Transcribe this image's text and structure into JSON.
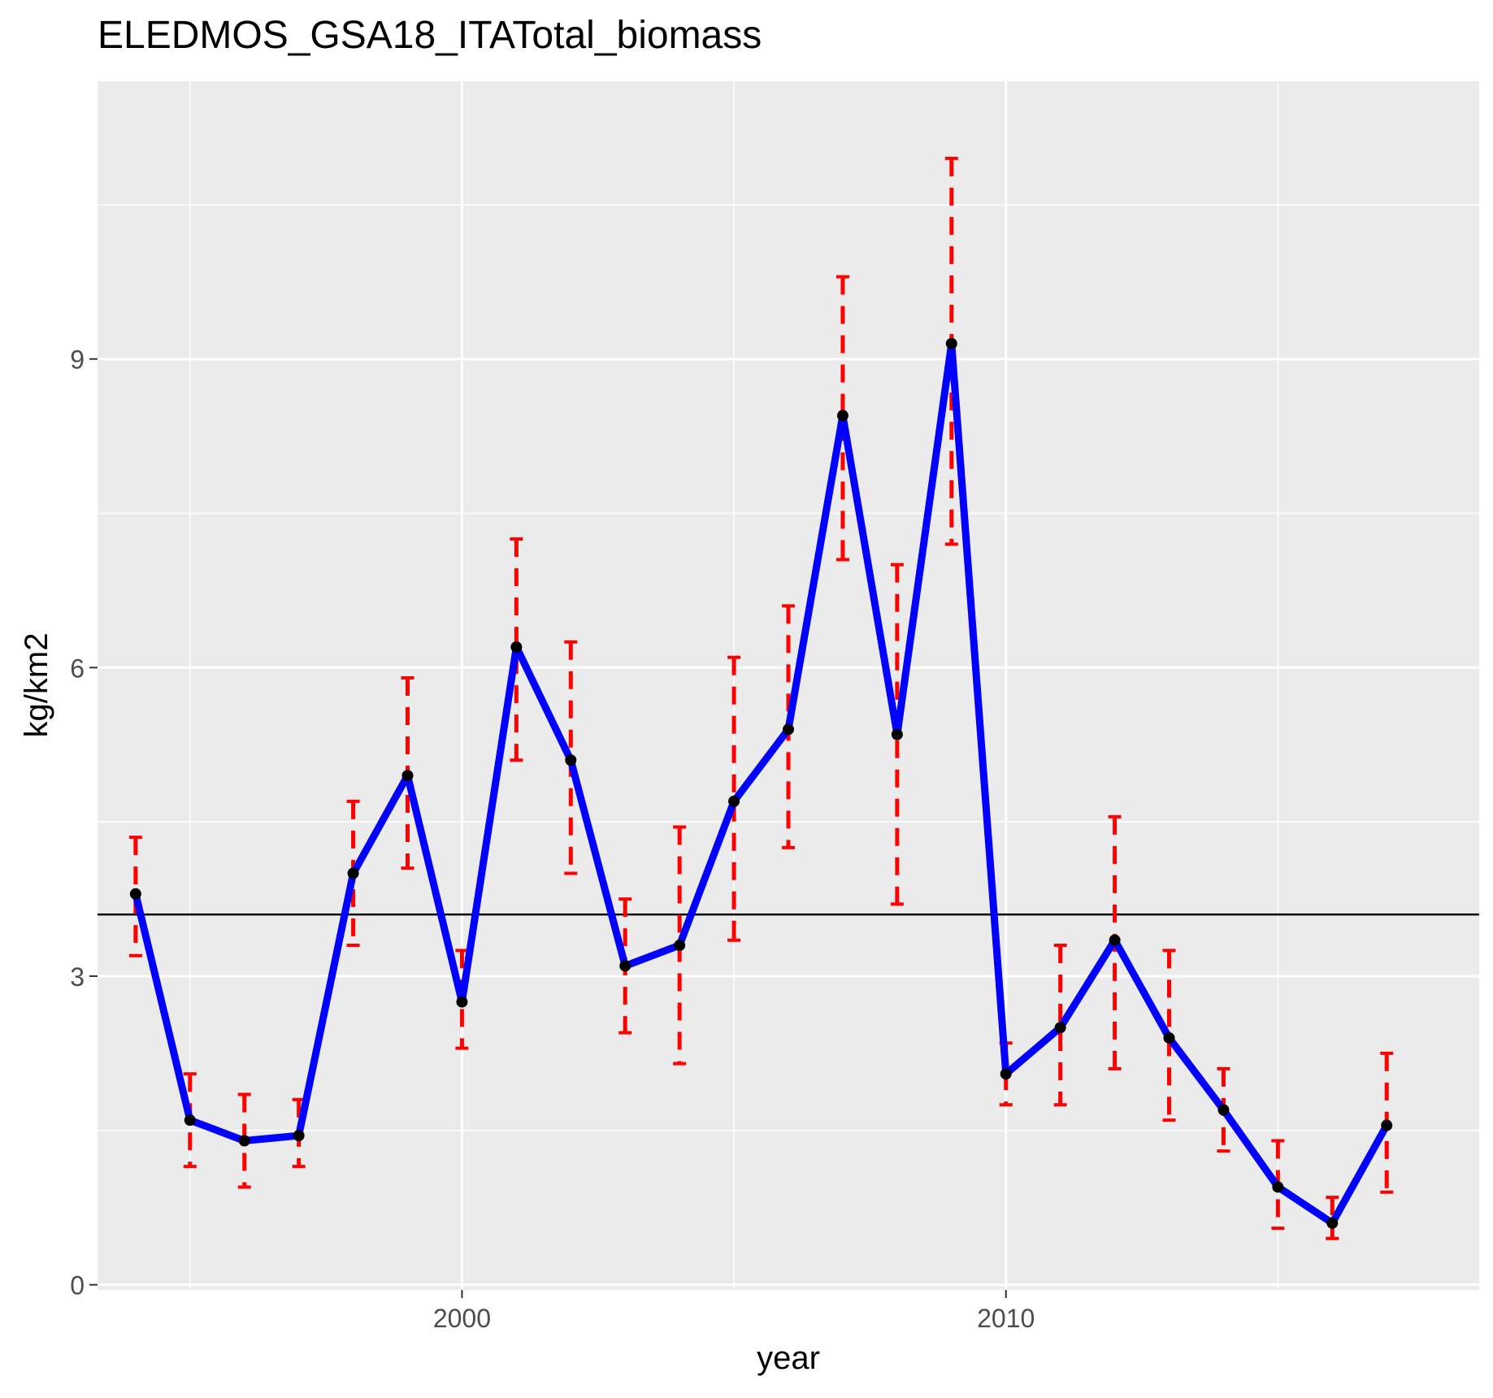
{
  "chart_data": {
    "type": "line",
    "title": "ELEDMOS_GSA18_ITATotal_biomass",
    "xlabel": "year",
    "ylabel": "kg/km2",
    "xlim": [
      1993.3,
      2018.7
    ],
    "ylim": [
      -0.05,
      11.7
    ],
    "x_ticks": [
      2000,
      2010
    ],
    "x_tick_labels": [
      "2000",
      "2010"
    ],
    "x_minor_ticks": [
      1995,
      2005,
      2015
    ],
    "y_ticks": [
      0,
      3,
      6,
      9
    ],
    "y_tick_labels": [
      "0",
      "3",
      "6",
      "9"
    ],
    "y_minor_ticks": [
      1.5,
      4.5,
      7.5,
      10.5
    ],
    "grid": true,
    "panel_background": "#ebebeb",
    "grid_color": "#ffffff",
    "reference_line": {
      "y": 3.6,
      "color": "#000000"
    },
    "series": [
      {
        "line_color": "#0000ff",
        "point_color": "#000000",
        "errorbar_color": "#ff0000",
        "errorbar_style": "dashed",
        "x": [
          1994,
          1995,
          1996,
          1997,
          1998,
          1999,
          2000,
          2001,
          2002,
          2003,
          2004,
          2005,
          2006,
          2007,
          2008,
          2009,
          2010,
          2011,
          2012,
          2013,
          2014,
          2015,
          2016,
          2017
        ],
        "y": [
          3.8,
          1.6,
          1.4,
          1.45,
          4.0,
          4.95,
          2.75,
          6.2,
          5.1,
          3.1,
          3.3,
          4.7,
          5.4,
          8.45,
          5.35,
          9.15,
          2.05,
          2.5,
          3.35,
          2.4,
          1.7,
          0.95,
          0.6,
          1.55
        ],
        "lower": [
          3.2,
          1.15,
          0.95,
          1.15,
          3.3,
          4.05,
          2.3,
          5.1,
          4.0,
          2.45,
          2.15,
          3.35,
          4.25,
          7.05,
          3.7,
          7.2,
          1.75,
          1.75,
          2.1,
          1.6,
          1.3,
          0.55,
          0.45,
          0.9
        ],
        "upper": [
          4.35,
          2.05,
          1.85,
          1.8,
          4.7,
          5.9,
          3.25,
          7.25,
          6.25,
          3.75,
          4.45,
          6.1,
          6.6,
          9.8,
          7.0,
          10.95,
          2.35,
          3.3,
          4.55,
          3.25,
          2.1,
          1.4,
          0.85,
          2.25
        ]
      }
    ]
  }
}
